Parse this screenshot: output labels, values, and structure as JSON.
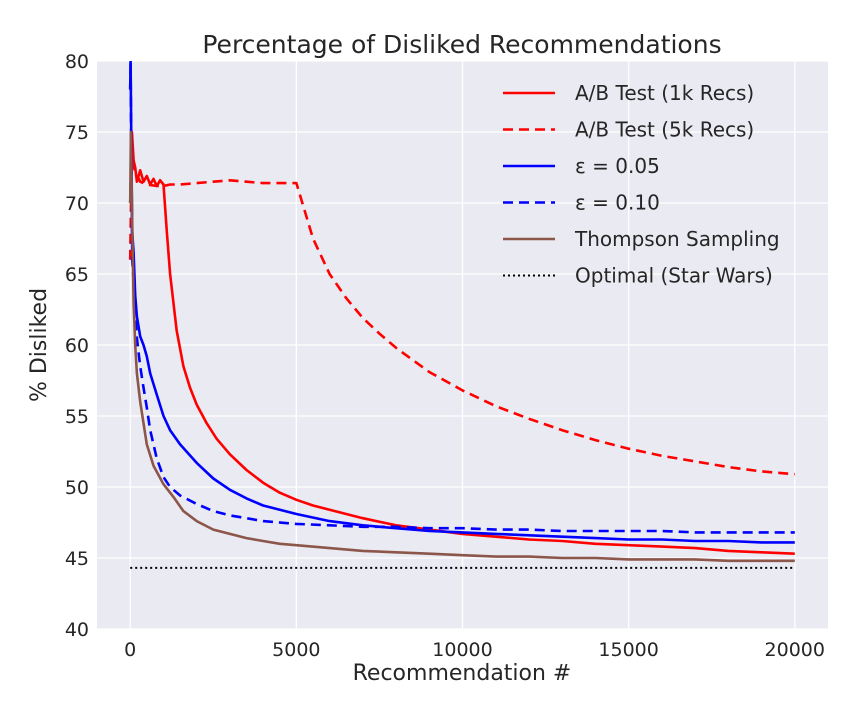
{
  "chart_data": {
    "type": "line",
    "title": "Percentage of Disliked Recommendations",
    "xlabel": "Recommendation #",
    "ylabel": "% Disliked",
    "xlim": [
      -1000,
      21000
    ],
    "ylim": [
      40,
      80
    ],
    "xticks": [
      0,
      5000,
      10000,
      15000,
      20000
    ],
    "yticks": [
      40,
      45,
      50,
      55,
      60,
      65,
      70,
      75,
      80
    ],
    "grid": true,
    "legend_position": "top-right",
    "series": [
      {
        "name": "A/B Test (1k Recs)",
        "color": "#ff0000",
        "dash": "solid",
        "x": [
          0,
          50,
          100,
          150,
          200,
          300,
          400,
          500,
          600,
          700,
          800,
          900,
          1000,
          1100,
          1200,
          1400,
          1600,
          1800,
          2000,
          2300,
          2600,
          3000,
          3500,
          4000,
          4500,
          5000,
          5500,
          6000,
          6500,
          7000,
          8000,
          9000,
          10000,
          11000,
          12000,
          13000,
          14000,
          15000,
          16000,
          17000,
          18000,
          19000,
          20000
        ],
        "y": [
          70,
          75,
          73,
          72.5,
          71.5,
          72.3,
          71.5,
          71.9,
          71.3,
          71.7,
          71.2,
          71.6,
          71.3,
          68.0,
          65.0,
          61.0,
          58.5,
          57.0,
          55.8,
          54.5,
          53.4,
          52.3,
          51.2,
          50.3,
          49.6,
          49.1,
          48.7,
          48.4,
          48.1,
          47.8,
          47.3,
          47.0,
          46.7,
          46.5,
          46.3,
          46.2,
          46.0,
          45.9,
          45.8,
          45.7,
          45.5,
          45.4,
          45.3
        ]
      },
      {
        "name": "A/B Test (5k Recs)",
        "color": "#ff0000",
        "dash": "dashed",
        "x": [
          0,
          50,
          100,
          200,
          300,
          500,
          800,
          1000,
          1200,
          1500,
          2000,
          2500,
          3000,
          3500,
          4000,
          4500,
          5000,
          5500,
          6000,
          6500,
          7000,
          7500,
          8000,
          9000,
          10000,
          11000,
          12000,
          13000,
          14000,
          15000,
          16000,
          17000,
          18000,
          19000,
          20000
        ],
        "y": [
          66,
          74,
          72.5,
          72,
          71.5,
          71.3,
          71.2,
          71.2,
          71.3,
          71.3,
          71.4,
          71.5,
          71.6,
          71.5,
          71.4,
          71.4,
          71.4,
          67.5,
          65.0,
          63.3,
          61.9,
          60.8,
          59.8,
          58.1,
          56.8,
          55.7,
          54.8,
          54.0,
          53.3,
          52.7,
          52.2,
          51.8,
          51.4,
          51.1,
          50.9
        ]
      },
      {
        "name": "ε = 0.05",
        "color": "#0000ff",
        "dash": "solid",
        "x": [
          0,
          10,
          30,
          60,
          100,
          150,
          200,
          300,
          400,
          500,
          600,
          800,
          1000,
          1200,
          1500,
          2000,
          2500,
          3000,
          3500,
          4000,
          4500,
          5000,
          6000,
          7000,
          8000,
          9000,
          10000,
          11000,
          12000,
          13000,
          14000,
          15000,
          16000,
          17000,
          18000,
          19000,
          20000
        ],
        "y": [
          78,
          80,
          75,
          68,
          66.5,
          63.5,
          62,
          60.6,
          60.0,
          59.2,
          58.0,
          56.5,
          55.0,
          54.0,
          53.0,
          51.7,
          50.6,
          49.8,
          49.2,
          48.7,
          48.4,
          48.1,
          47.6,
          47.3,
          47.1,
          46.9,
          46.8,
          46.7,
          46.6,
          46.5,
          46.4,
          46.3,
          46.3,
          46.2,
          46.2,
          46.1,
          46.1
        ]
      },
      {
        "name": "ε = 0.10",
        "color": "#0000ff",
        "dash": "dashed",
        "x": [
          0,
          10,
          30,
          60,
          100,
          150,
          200,
          300,
          400,
          500,
          600,
          800,
          1000,
          1200,
          1500,
          2000,
          2500,
          3000,
          3500,
          4000,
          5000,
          6000,
          7000,
          8000,
          9000,
          10000,
          11000,
          12000,
          13000,
          14000,
          15000,
          16000,
          17000,
          18000,
          19000,
          20000
        ],
        "y": [
          78,
          80,
          74,
          66,
          64.5,
          62,
          60.5,
          58.5,
          57.0,
          55.6,
          54.0,
          52.0,
          50.7,
          50.0,
          49.4,
          48.8,
          48.3,
          48.0,
          47.8,
          47.6,
          47.4,
          47.3,
          47.2,
          47.2,
          47.1,
          47.1,
          47.0,
          47.0,
          46.9,
          46.9,
          46.9,
          46.9,
          46.8,
          46.8,
          46.8,
          46.8
        ]
      },
      {
        "name": "Thompson Sampling",
        "color": "#8c564b",
        "dash": "solid",
        "x": [
          0,
          20,
          50,
          100,
          150,
          200,
          300,
          400,
          500,
          700,
          1000,
          1300,
          1600,
          2000,
          2500,
          3000,
          3500,
          4000,
          4500,
          5000,
          6000,
          7000,
          8000,
          9000,
          10000,
          11000,
          12000,
          13000,
          14000,
          15000,
          16000,
          17000,
          18000,
          19000,
          20000
        ],
        "y": [
          70,
          75,
          70,
          63,
          60,
          58,
          56,
          54.5,
          53.0,
          51.5,
          50.2,
          49.3,
          48.3,
          47.6,
          47.0,
          46.7,
          46.4,
          46.2,
          46.0,
          45.9,
          45.7,
          45.5,
          45.4,
          45.3,
          45.2,
          45.1,
          45.1,
          45.0,
          45.0,
          44.9,
          44.9,
          44.9,
          44.8,
          44.8,
          44.8
        ]
      },
      {
        "name": "Optimal (Star Wars)",
        "color": "#000000",
        "dash": "dotted",
        "x": [
          0,
          20000
        ],
        "y": [
          44.3,
          44.3
        ]
      }
    ]
  }
}
